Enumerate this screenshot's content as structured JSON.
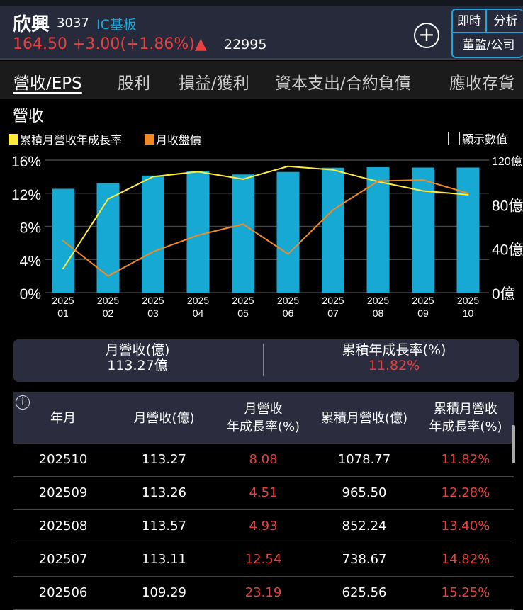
{
  "header": {
    "name": "欣興",
    "code": "3037",
    "industry": "IC基板",
    "quote": "164.50 +3.00(+1.86%)",
    "arrow": "▲",
    "volume": "22995",
    "buttons": [
      "即時",
      "分析",
      "董監/公司"
    ]
  },
  "tabs": [
    "營收/EPS",
    "股利",
    "損益/獲利",
    "資本支出/合約負債",
    "應收存貨"
  ],
  "section_title": "營收",
  "legend": [
    {
      "label": "累積月營收年成長率",
      "color": "#ffeb3b"
    },
    {
      "label": "月收盤價",
      "color": "#f08a24"
    }
  ],
  "show_values_label": "顯示數值",
  "colors": {
    "bar": "#16a9d4",
    "up": "#e8403f",
    "accent": "#1aa7d9"
  },
  "chart_data": {
    "type": "bar+line",
    "categories": [
      [
        "2025",
        "01"
      ],
      [
        "2025",
        "02"
      ],
      [
        "2025",
        "03"
      ],
      [
        "2025",
        "04"
      ],
      [
        "2025",
        "05"
      ],
      [
        "2025",
        "06"
      ],
      [
        "2025",
        "07"
      ],
      [
        "2025",
        "08"
      ],
      [
        "2025",
        "09"
      ],
      [
        "2025",
        "10"
      ]
    ],
    "left_axis": {
      "ticks": [
        "0%",
        "4%",
        "8%",
        "12%",
        "16%"
      ],
      "range": [
        0,
        16
      ]
    },
    "right_axis": {
      "ticks": [
        "0億",
        "40億",
        "80億",
        "120億"
      ],
      "range": [
        0,
        120
      ]
    },
    "grid": true,
    "bars": {
      "axis": "right",
      "values": [
        94,
        99,
        106,
        110,
        107,
        109.29,
        113.11,
        113.57,
        113.26,
        113.27
      ]
    },
    "series": [
      {
        "name": "累積月營收年成長率",
        "axis": "left",
        "color": "#ffeb3b",
        "values": [
          2.9,
          11.3,
          14.0,
          14.6,
          13.7,
          15.25,
          14.82,
          13.4,
          12.28,
          11.82
        ]
      },
      {
        "name": "月收盤價",
        "axis": "right",
        "color": "#f08a24",
        "values": [
          47,
          15,
          37,
          52,
          62,
          35,
          75,
          101,
          102,
          90
        ]
      }
    ]
  },
  "summary": {
    "left_label": "月營收(億)",
    "left_value": "113.27億",
    "right_label": "累積年成長率(%)",
    "right_value": "11.82%"
  },
  "table": {
    "info": "i",
    "headers": [
      "年月",
      "月營收(億)",
      "月營收\n年成長率(%)",
      "累積月營收(億)",
      "累積月營收\n年成長率(%)"
    ],
    "rows": [
      [
        "202510",
        "113.27",
        "8.08",
        "1078.77",
        "11.82%"
      ],
      [
        "202509",
        "113.26",
        "4.51",
        "965.50",
        "12.28%"
      ],
      [
        "202508",
        "113.57",
        "4.93",
        "852.24",
        "13.40%"
      ],
      [
        "202507",
        "113.11",
        "12.54",
        "738.67",
        "14.82%"
      ],
      [
        "202506",
        "109.29",
        "23.19",
        "625.56",
        "15.25%"
      ]
    ]
  }
}
